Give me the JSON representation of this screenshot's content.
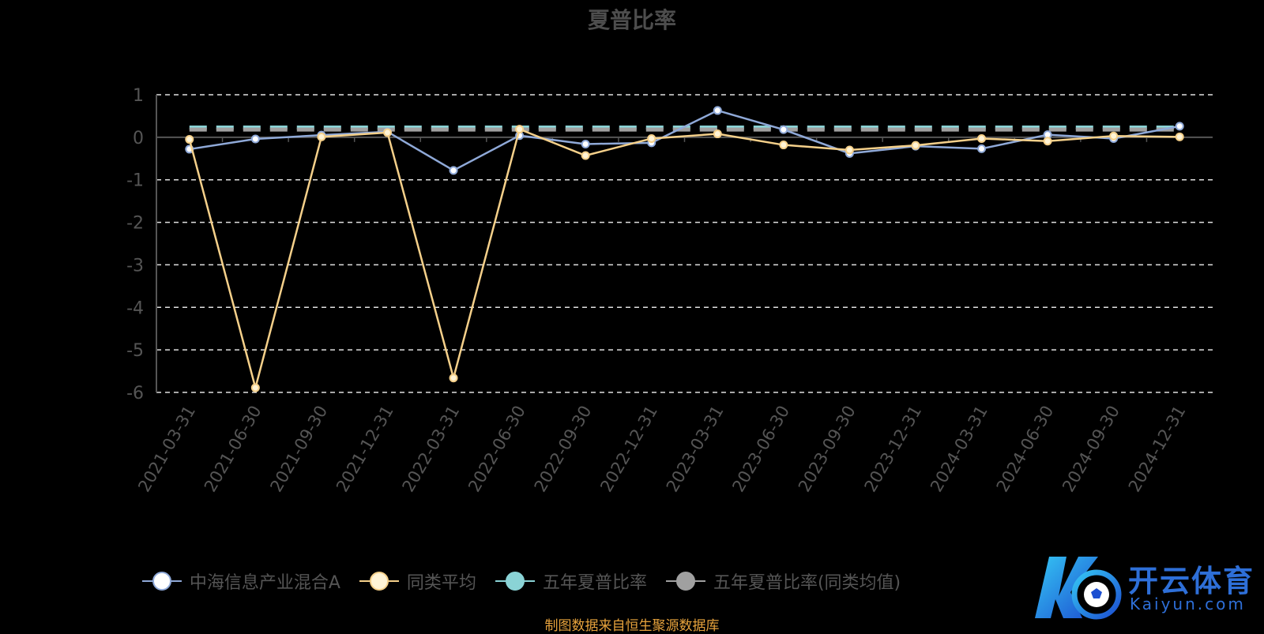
{
  "chart_data": {
    "type": "line",
    "title": "夏普比率",
    "categories": [
      "2021-03-31",
      "2021-06-30",
      "2021-09-30",
      "2021-12-31",
      "2022-03-31",
      "2022-06-30",
      "2022-09-30",
      "2022-12-31",
      "2023-03-31",
      "2023-06-30",
      "2023-09-30",
      "2023-12-31",
      "2024-03-31",
      "2024-06-30",
      "2024-09-30",
      "2024-12-31"
    ],
    "yticks": [
      "1",
      "0",
      "-1",
      "-2",
      "-3",
      "-4",
      "-5",
      "-6"
    ],
    "ylim": [
      -6,
      1
    ],
    "grid": true,
    "legend_position": "bottom",
    "series": [
      {
        "name": "中海信息产业混合A",
        "color": "#8fa9d8",
        "marker_fill": "#ffffff",
        "values": [
          -0.28,
          -0.04,
          0.05,
          0.13,
          -0.78,
          0.04,
          -0.16,
          -0.13,
          0.63,
          0.18,
          -0.38,
          -0.21,
          -0.27,
          0.06,
          -0.03,
          0.26
        ]
      },
      {
        "name": "同类平均",
        "color": "#f5d08a",
        "marker_fill": "#fff4d6",
        "values": [
          -0.05,
          -5.89,
          0.01,
          0.11,
          -5.66,
          0.19,
          -0.43,
          -0.03,
          0.08,
          -0.18,
          -0.3,
          -0.19,
          -0.03,
          -0.09,
          0.03,
          0.01
        ]
      },
      {
        "name": "五年夏普比率",
        "color": "#8ad3d6",
        "marker_fill": "#8ad3d6",
        "style": "dashed",
        "constant": 0.23
      },
      {
        "name": "五年夏普比率(同类均值)",
        "color": "#a0a0a0",
        "marker_fill": "#a0a0a0",
        "style": "dashed",
        "constant": 0.18
      }
    ]
  },
  "source_note": "制图数据来自恒生聚源数据库",
  "logo": {
    "cn": "开云体育",
    "en": "Kaiyun.com"
  }
}
